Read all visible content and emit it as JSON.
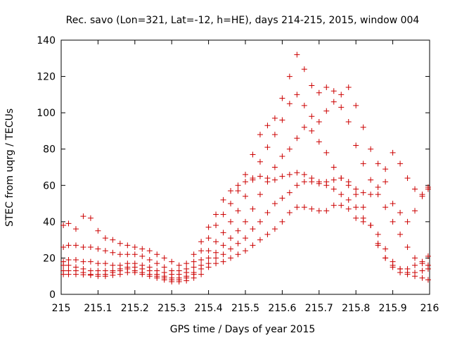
{
  "chart_data": {
    "type": "scatter",
    "title": "Rec. savo (Lon=321, Lat=-12, h=HE), days 214-215, 2015, window 004",
    "xlabel": "GPS time / Days of year 2015",
    "ylabel": "STEC from uqrg / TECUs",
    "xlim": [
      215,
      216
    ],
    "ylim": [
      0,
      140
    ],
    "x_ticks": [
      "215",
      "215.1",
      "215.2",
      "215.3",
      "215.4",
      "215.5",
      "215.6",
      "215.7",
      "215.8",
      "215.9",
      "216"
    ],
    "y_ticks": [
      "0",
      "20",
      "40",
      "60",
      "80",
      "100",
      "120",
      "140"
    ],
    "grid": false,
    "legend": "none",
    "marker": "+",
    "color": "#cc0000",
    "series": [
      {
        "points": [
          [
            215.006,
            11
          ],
          [
            215.02,
            11
          ],
          [
            215.04,
            11
          ],
          [
            215.06,
            10.8
          ],
          [
            215.08,
            10.5
          ],
          [
            215.1,
            10
          ],
          [
            215.12,
            10
          ],
          [
            215.14,
            10.5
          ],
          [
            215.16,
            11
          ],
          [
            215.18,
            12
          ],
          [
            215.2,
            12
          ],
          [
            215.22,
            11
          ],
          [
            215.24,
            10
          ],
          [
            215.26,
            9
          ],
          [
            215.28,
            8
          ],
          [
            215.3,
            7
          ],
          [
            215.32,
            7
          ],
          [
            215.34,
            7.5
          ],
          [
            215.36,
            9
          ],
          [
            215.38,
            11
          ],
          [
            215.4,
            15
          ],
          [
            215.42,
            17
          ],
          [
            215.44,
            18
          ],
          [
            215.46,
            20
          ],
          [
            215.48,
            22
          ],
          [
            215.5,
            24
          ],
          [
            215.52,
            27
          ],
          [
            215.54,
            30
          ],
          [
            215.56,
            33
          ],
          [
            215.58,
            36
          ],
          [
            215.6,
            40
          ],
          [
            215.62,
            45
          ],
          [
            215.64,
            48
          ],
          [
            215.66,
            48
          ],
          [
            215.68,
            47
          ],
          [
            215.7,
            46
          ],
          [
            215.72,
            46
          ],
          [
            215.74,
            49
          ],
          [
            215.76,
            49
          ],
          [
            215.78,
            47
          ],
          [
            215.8,
            42
          ],
          [
            215.82,
            40
          ],
          [
            215.84,
            38
          ],
          [
            215.86,
            27
          ],
          [
            215.88,
            20
          ],
          [
            215.9,
            15
          ],
          [
            215.92,
            12
          ],
          [
            215.94,
            11
          ],
          [
            215.96,
            10
          ],
          [
            215.98,
            9
          ],
          [
            215.996,
            8
          ]
        ]
      },
      {
        "points": [
          [
            215.006,
            13
          ],
          [
            215.02,
            13
          ],
          [
            215.04,
            13
          ],
          [
            215.06,
            12
          ],
          [
            215.08,
            11
          ],
          [
            215.1,
            11
          ],
          [
            215.12,
            11
          ],
          [
            215.14,
            12
          ],
          [
            215.16,
            13
          ],
          [
            215.18,
            14
          ],
          [
            215.2,
            13
          ],
          [
            215.22,
            12
          ],
          [
            215.24,
            11
          ],
          [
            215.26,
            10
          ],
          [
            215.28,
            9
          ],
          [
            215.3,
            8
          ],
          [
            215.32,
            8
          ],
          [
            215.34,
            9
          ],
          [
            215.36,
            11
          ],
          [
            215.38,
            14
          ],
          [
            215.4,
            17
          ],
          [
            215.42,
            20
          ],
          [
            215.44,
            22
          ],
          [
            215.46,
            25
          ],
          [
            215.48,
            28
          ],
          [
            215.5,
            31
          ],
          [
            215.52,
            36
          ],
          [
            215.54,
            40
          ],
          [
            215.56,
            45
          ],
          [
            215.58,
            50
          ],
          [
            215.6,
            53
          ],
          [
            215.62,
            56
          ],
          [
            215.64,
            60
          ],
          [
            215.66,
            62
          ],
          [
            215.68,
            62
          ],
          [
            215.7,
            61
          ],
          [
            215.72,
            60
          ],
          [
            215.74,
            58
          ],
          [
            215.76,
            55
          ],
          [
            215.78,
            52
          ],
          [
            215.8,
            48
          ],
          [
            215.82,
            42
          ],
          [
            215.84,
            38
          ],
          [
            215.86,
            33
          ],
          [
            215.88,
            25
          ],
          [
            215.9,
            18
          ],
          [
            215.92,
            14
          ],
          [
            215.94,
            12
          ],
          [
            215.96,
            12
          ],
          [
            215.98,
            13
          ],
          [
            215.996,
            14
          ]
        ]
      },
      {
        "points": [
          [
            215.006,
            16
          ],
          [
            215.02,
            16
          ],
          [
            215.04,
            15
          ],
          [
            215.06,
            14
          ],
          [
            215.08,
            13
          ],
          [
            215.1,
            13
          ],
          [
            215.12,
            13
          ],
          [
            215.14,
            13
          ],
          [
            215.16,
            14
          ],
          [
            215.18,
            15
          ],
          [
            215.2,
            15
          ],
          [
            215.22,
            14
          ],
          [
            215.24,
            13
          ],
          [
            215.26,
            11
          ],
          [
            215.28,
            10
          ],
          [
            215.3,
            9
          ],
          [
            215.32,
            9
          ],
          [
            215.34,
            10
          ],
          [
            215.36,
            12
          ],
          [
            215.38,
            16
          ],
          [
            215.4,
            20
          ],
          [
            215.42,
            23
          ],
          [
            215.44,
            27
          ],
          [
            215.46,
            31
          ],
          [
            215.48,
            35
          ],
          [
            215.5,
            40
          ],
          [
            215.52,
            47
          ],
          [
            215.54,
            55
          ],
          [
            215.56,
            62
          ],
          [
            215.58,
            70
          ],
          [
            215.6,
            76
          ],
          [
            215.62,
            80
          ],
          [
            215.64,
            86
          ],
          [
            215.66,
            92
          ],
          [
            215.68,
            90
          ],
          [
            215.7,
            84
          ],
          [
            215.72,
            78
          ],
          [
            215.74,
            70
          ],
          [
            215.76,
            64
          ],
          [
            215.78,
            60
          ],
          [
            215.8,
            55
          ],
          [
            215.82,
            48
          ],
          [
            215.84,
            38
          ],
          [
            215.86,
            28
          ],
          [
            215.88,
            20
          ],
          [
            215.9,
            16
          ],
          [
            215.92,
            14
          ],
          [
            215.94,
            14
          ],
          [
            215.96,
            16
          ],
          [
            215.98,
            18
          ],
          [
            215.996,
            21
          ]
        ]
      },
      {
        "points": [
          [
            215.006,
            18
          ],
          [
            215.02,
            19
          ],
          [
            215.04,
            19
          ],
          [
            215.06,
            18
          ],
          [
            215.08,
            18
          ],
          [
            215.1,
            17
          ],
          [
            215.12,
            17
          ],
          [
            215.14,
            16
          ],
          [
            215.16,
            16
          ],
          [
            215.18,
            17
          ],
          [
            215.2,
            17
          ],
          [
            215.22,
            16
          ],
          [
            215.24,
            15
          ],
          [
            215.26,
            13
          ],
          [
            215.28,
            12
          ],
          [
            215.3,
            11
          ],
          [
            215.32,
            11
          ],
          [
            215.34,
            12
          ],
          [
            215.36,
            15
          ],
          [
            215.38,
            19
          ],
          [
            215.4,
            24
          ],
          [
            215.42,
            29
          ],
          [
            215.44,
            34
          ],
          [
            215.46,
            40
          ],
          [
            215.48,
            46
          ],
          [
            215.5,
            54
          ],
          [
            215.52,
            63
          ],
          [
            215.54,
            73
          ],
          [
            215.56,
            81
          ],
          [
            215.58,
            88
          ],
          [
            215.6,
            96
          ],
          [
            215.62,
            105
          ],
          [
            215.64,
            110
          ],
          [
            215.66,
            104
          ],
          [
            215.68,
            98
          ],
          [
            215.7,
            95
          ],
          [
            215.72,
            101
          ],
          [
            215.74,
            106
          ],
          [
            215.76,
            103
          ],
          [
            215.78,
            95
          ],
          [
            215.8,
            82
          ],
          [
            215.82,
            72
          ],
          [
            215.84,
            63
          ],
          [
            215.86,
            55
          ],
          [
            215.88,
            48
          ],
          [
            215.9,
            40
          ],
          [
            215.92,
            33
          ],
          [
            215.94,
            26
          ],
          [
            215.96,
            20
          ],
          [
            215.98,
            17
          ],
          [
            215.996,
            16
          ]
        ]
      },
      {
        "points": [
          [
            215.006,
            26
          ],
          [
            215.02,
            27
          ],
          [
            215.04,
            27
          ],
          [
            215.06,
            26
          ],
          [
            215.08,
            26
          ],
          [
            215.1,
            25
          ],
          [
            215.12,
            24
          ],
          [
            215.14,
            23
          ],
          [
            215.16,
            22
          ],
          [
            215.18,
            22
          ],
          [
            215.2,
            22
          ],
          [
            215.22,
            21
          ],
          [
            215.24,
            19
          ],
          [
            215.26,
            17
          ],
          [
            215.28,
            15
          ],
          [
            215.3,
            13
          ],
          [
            215.32,
            13
          ],
          [
            215.34,
            14
          ],
          [
            215.36,
            18
          ],
          [
            215.38,
            24
          ],
          [
            215.4,
            31
          ],
          [
            215.42,
            38
          ],
          [
            215.44,
            44
          ],
          [
            215.46,
            50
          ],
          [
            215.48,
            57
          ],
          [
            215.5,
            66
          ],
          [
            215.52,
            77
          ],
          [
            215.54,
            88
          ],
          [
            215.56,
            93
          ],
          [
            215.58,
            97
          ],
          [
            215.6,
            108
          ],
          [
            215.62,
            120
          ],
          [
            215.64,
            132
          ],
          [
            215.66,
            124
          ],
          [
            215.68,
            115
          ],
          [
            215.7,
            111
          ],
          [
            215.72,
            114
          ],
          [
            215.74,
            112
          ],
          [
            215.76,
            110
          ],
          [
            215.78,
            114
          ],
          [
            215.8,
            104
          ],
          [
            215.82,
            92
          ],
          [
            215.84,
            80
          ],
          [
            215.86,
            72
          ],
          [
            215.88,
            62
          ],
          [
            215.9,
            50
          ],
          [
            215.92,
            45
          ],
          [
            215.94,
            40
          ],
          [
            215.96,
            46
          ],
          [
            215.98,
            54
          ],
          [
            215.996,
            59
          ]
        ]
      },
      {
        "points": [
          [
            215.006,
            38
          ],
          [
            215.02,
            39
          ],
          [
            215.04,
            36
          ],
          [
            215.06,
            43
          ],
          [
            215.08,
            42
          ],
          [
            215.1,
            35
          ],
          [
            215.12,
            31
          ],
          [
            215.14,
            30
          ],
          [
            215.16,
            28
          ],
          [
            215.18,
            27
          ],
          [
            215.2,
            26
          ],
          [
            215.22,
            25
          ],
          [
            215.24,
            24
          ],
          [
            215.26,
            22
          ],
          [
            215.28,
            20
          ],
          [
            215.3,
            18
          ],
          [
            215.32,
            16
          ],
          [
            215.34,
            17
          ],
          [
            215.36,
            22
          ],
          [
            215.38,
            29
          ],
          [
            215.4,
            37
          ],
          [
            215.42,
            44
          ],
          [
            215.44,
            52
          ],
          [
            215.46,
            57
          ],
          [
            215.48,
            60
          ],
          [
            215.5,
            62
          ],
          [
            215.52,
            64
          ],
          [
            215.54,
            65
          ],
          [
            215.56,
            64
          ],
          [
            215.58,
            63
          ],
          [
            215.6,
            65
          ],
          [
            215.62,
            66
          ],
          [
            215.64,
            67
          ],
          [
            215.66,
            66
          ],
          [
            215.68,
            64
          ],
          [
            215.7,
            62
          ],
          [
            215.72,
            62
          ],
          [
            215.74,
            63
          ],
          [
            215.76,
            64
          ],
          [
            215.78,
            62
          ],
          [
            215.8,
            58
          ],
          [
            215.82,
            56
          ],
          [
            215.84,
            55
          ],
          [
            215.86,
            59
          ],
          [
            215.88,
            69
          ],
          [
            215.9,
            78
          ],
          [
            215.92,
            72
          ],
          [
            215.94,
            64
          ],
          [
            215.96,
            58
          ],
          [
            215.98,
            55
          ],
          [
            215.996,
            58
          ]
        ]
      }
    ]
  }
}
